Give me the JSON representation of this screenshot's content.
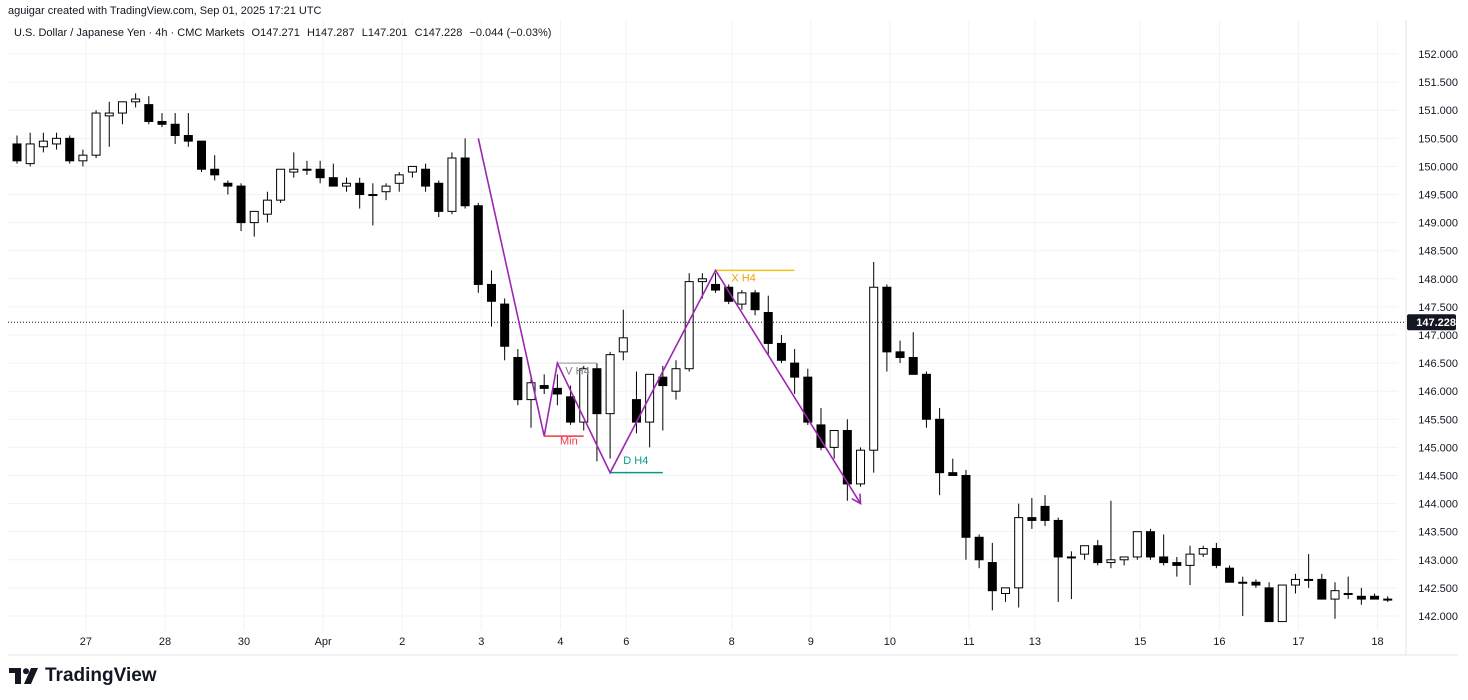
{
  "header": {
    "credit": "aguigar created with TradingView.com, Sep 01, 2025 17:21 UTC"
  },
  "legend": {
    "symbol": "U.S. Dollar / Japanese Yen · 4h · CMC Markets",
    "open": "O147.271",
    "high": "H147.287",
    "low": "L147.201",
    "close": "C147.228",
    "change": "−0.044 (−0.03%)"
  },
  "brand": {
    "name": "TradingView",
    "icon": "tradingview-logo-icon"
  },
  "colors": {
    "bull": "#ffffff",
    "bear": "#000000",
    "wick": "#000000",
    "pattern": "#9c27b0",
    "min": "#f23645",
    "d": "#089981",
    "x": "#f0c419",
    "a": "#b2b5be",
    "grid": "#f0f3fa"
  },
  "chart_data": {
    "type": "candlestick",
    "timeframe": "4h",
    "y_axis": {
      "ticks": [
        "152.000",
        "151.500",
        "151.000",
        "150.500",
        "150.000",
        "149.500",
        "149.000",
        "148.500",
        "148.000",
        "147.500",
        "147.000",
        "146.500",
        "146.000",
        "145.500",
        "145.000",
        "144.500",
        "144.000",
        "143.500",
        "143.000",
        "142.500",
        "142.000"
      ],
      "ylim": [
        141.75,
        152.25
      ],
      "last_price": "147.228"
    },
    "x_axis": {
      "ticks": [
        {
          "label": "27",
          "idx": 5
        },
        {
          "label": "28",
          "idx": 11
        },
        {
          "label": "30",
          "idx": 17
        },
        {
          "label": "Apr",
          "idx": 23
        },
        {
          "label": "2",
          "idx": 29
        },
        {
          "label": "3",
          "idx": 35
        },
        {
          "label": "4",
          "idx": 41
        },
        {
          "label": "6",
          "idx": 46
        },
        {
          "label": "8",
          "idx": 54
        },
        {
          "label": "9",
          "idx": 60
        },
        {
          "label": "10",
          "idx": 66
        },
        {
          "label": "11",
          "idx": 72
        },
        {
          "label": "13",
          "idx": 77
        },
        {
          "label": "15",
          "idx": 85
        },
        {
          "label": "16",
          "idx": 91
        },
        {
          "label": "17",
          "idx": 97
        },
        {
          "label": "18",
          "idx": 103
        }
      ]
    },
    "candles": [
      {
        "o": 150.4,
        "h": 150.55,
        "l": 150.05,
        "c": 150.1
      },
      {
        "o": 150.05,
        "h": 150.6,
        "l": 150.0,
        "c": 150.4
      },
      {
        "o": 150.35,
        "h": 150.6,
        "l": 150.25,
        "c": 150.45
      },
      {
        "o": 150.4,
        "h": 150.6,
        "l": 150.3,
        "c": 150.5
      },
      {
        "o": 150.5,
        "h": 150.55,
        "l": 150.05,
        "c": 150.1
      },
      {
        "o": 150.1,
        "h": 150.3,
        "l": 150.0,
        "c": 150.2
      },
      {
        "o": 150.2,
        "h": 151.0,
        "l": 150.15,
        "c": 150.95
      },
      {
        "o": 150.9,
        "h": 151.15,
        "l": 150.35,
        "c": 150.95
      },
      {
        "o": 150.95,
        "h": 151.15,
        "l": 150.75,
        "c": 151.15
      },
      {
        "o": 151.15,
        "h": 151.3,
        "l": 151.05,
        "c": 151.2
      },
      {
        "o": 151.1,
        "h": 151.25,
        "l": 150.75,
        "c": 150.8
      },
      {
        "o": 150.8,
        "h": 150.95,
        "l": 150.7,
        "c": 150.75
      },
      {
        "o": 150.75,
        "h": 150.95,
        "l": 150.4,
        "c": 150.55
      },
      {
        "o": 150.55,
        "h": 150.95,
        "l": 150.35,
        "c": 150.45
      },
      {
        "o": 150.45,
        "h": 150.45,
        "l": 149.9,
        "c": 149.95
      },
      {
        "o": 149.95,
        "h": 150.2,
        "l": 149.75,
        "c": 149.85
      },
      {
        "o": 149.7,
        "h": 149.75,
        "l": 149.5,
        "c": 149.65
      },
      {
        "o": 149.65,
        "h": 149.7,
        "l": 148.85,
        "c": 149.0
      },
      {
        "o": 149.0,
        "h": 149.2,
        "l": 148.75,
        "c": 149.2
      },
      {
        "o": 149.15,
        "h": 149.55,
        "l": 149.0,
        "c": 149.4
      },
      {
        "o": 149.4,
        "h": 149.95,
        "l": 149.35,
        "c": 149.95
      },
      {
        "o": 149.9,
        "h": 150.25,
        "l": 149.8,
        "c": 149.95
      },
      {
        "o": 149.95,
        "h": 150.1,
        "l": 149.85,
        "c": 149.95
      },
      {
        "o": 149.95,
        "h": 150.1,
        "l": 149.7,
        "c": 149.8
      },
      {
        "o": 149.8,
        "h": 150.05,
        "l": 149.65,
        "c": 149.65
      },
      {
        "o": 149.65,
        "h": 149.8,
        "l": 149.55,
        "c": 149.7
      },
      {
        "o": 149.7,
        "h": 149.8,
        "l": 149.25,
        "c": 149.5
      },
      {
        "o": 149.5,
        "h": 149.7,
        "l": 148.95,
        "c": 149.5
      },
      {
        "o": 149.55,
        "h": 149.7,
        "l": 149.4,
        "c": 149.65
      },
      {
        "o": 149.7,
        "h": 149.9,
        "l": 149.55,
        "c": 149.85
      },
      {
        "o": 149.9,
        "h": 150.0,
        "l": 149.8,
        "c": 150.0
      },
      {
        "o": 149.95,
        "h": 150.05,
        "l": 149.55,
        "c": 149.65
      },
      {
        "o": 149.7,
        "h": 149.75,
        "l": 149.1,
        "c": 149.2
      },
      {
        "o": 149.2,
        "h": 150.25,
        "l": 149.15,
        "c": 150.15
      },
      {
        "o": 150.15,
        "h": 150.5,
        "l": 149.25,
        "c": 149.3
      },
      {
        "o": 149.3,
        "h": 149.35,
        "l": 147.75,
        "c": 147.9
      },
      {
        "o": 147.9,
        "h": 148.15,
        "l": 147.15,
        "c": 147.6
      },
      {
        "o": 147.55,
        "h": 147.65,
        "l": 146.55,
        "c": 146.8
      },
      {
        "o": 146.6,
        "h": 146.75,
        "l": 145.75,
        "c": 145.85
      },
      {
        "o": 145.85,
        "h": 146.3,
        "l": 145.35,
        "c": 146.15
      },
      {
        "o": 146.1,
        "h": 146.3,
        "l": 145.95,
        "c": 146.05
      },
      {
        "o": 146.05,
        "h": 146.3,
        "l": 145.75,
        "c": 145.95
      },
      {
        "o": 145.9,
        "h": 146.1,
        "l": 145.4,
        "c": 145.45
      },
      {
        "o": 145.45,
        "h": 146.45,
        "l": 145.3,
        "c": 146.4
      },
      {
        "o": 146.4,
        "h": 146.5,
        "l": 144.75,
        "c": 145.6
      },
      {
        "o": 145.6,
        "h": 146.7,
        "l": 144.8,
        "c": 146.65
      },
      {
        "o": 146.7,
        "h": 147.45,
        "l": 146.55,
        "c": 146.95
      },
      {
        "o": 145.85,
        "h": 146.35,
        "l": 145.25,
        "c": 145.45
      },
      {
        "o": 145.45,
        "h": 146.3,
        "l": 145.0,
        "c": 146.3
      },
      {
        "o": 146.25,
        "h": 146.45,
        "l": 145.3,
        "c": 146.1
      },
      {
        "o": 146.0,
        "h": 146.55,
        "l": 145.85,
        "c": 146.4
      },
      {
        "o": 146.4,
        "h": 148.1,
        "l": 146.35,
        "c": 147.95
      },
      {
        "o": 147.95,
        "h": 148.1,
        "l": 147.65,
        "c": 148.0
      },
      {
        "o": 147.9,
        "h": 148.1,
        "l": 147.75,
        "c": 147.8
      },
      {
        "o": 147.85,
        "h": 147.9,
        "l": 147.55,
        "c": 147.6
      },
      {
        "o": 147.55,
        "h": 147.8,
        "l": 147.45,
        "c": 147.75
      },
      {
        "o": 147.75,
        "h": 147.8,
        "l": 147.35,
        "c": 147.45
      },
      {
        "o": 147.4,
        "h": 147.7,
        "l": 146.65,
        "c": 146.85
      },
      {
        "o": 146.85,
        "h": 147.0,
        "l": 146.5,
        "c": 146.55
      },
      {
        "o": 146.5,
        "h": 146.75,
        "l": 145.95,
        "c": 146.25
      },
      {
        "o": 146.25,
        "h": 146.4,
        "l": 145.4,
        "c": 145.45
      },
      {
        "o": 145.4,
        "h": 145.7,
        "l": 144.95,
        "c": 145.0
      },
      {
        "o": 145.0,
        "h": 145.3,
        "l": 144.8,
        "c": 145.3
      },
      {
        "o": 145.3,
        "h": 145.5,
        "l": 144.05,
        "c": 144.35
      },
      {
        "o": 144.35,
        "h": 145.0,
        "l": 144.3,
        "c": 144.95
      },
      {
        "o": 144.95,
        "h": 148.3,
        "l": 144.55,
        "c": 147.85
      },
      {
        "o": 147.85,
        "h": 147.9,
        "l": 146.35,
        "c": 146.7
      },
      {
        "o": 146.7,
        "h": 146.9,
        "l": 146.5,
        "c": 146.6
      },
      {
        "o": 146.6,
        "h": 147.05,
        "l": 146.3,
        "c": 146.3
      },
      {
        "o": 146.3,
        "h": 146.35,
        "l": 145.35,
        "c": 145.5
      },
      {
        "o": 145.5,
        "h": 145.7,
        "l": 144.15,
        "c": 144.55
      },
      {
        "o": 144.55,
        "h": 144.8,
        "l": 144.5,
        "c": 144.5
      },
      {
        "o": 144.5,
        "h": 144.6,
        "l": 143.0,
        "c": 143.4
      },
      {
        "o": 143.4,
        "h": 143.45,
        "l": 142.85,
        "c": 143.0
      },
      {
        "o": 142.95,
        "h": 143.3,
        "l": 142.1,
        "c": 142.45
      },
      {
        "o": 142.4,
        "h": 142.5,
        "l": 142.25,
        "c": 142.5
      },
      {
        "o": 142.5,
        "h": 144.0,
        "l": 142.15,
        "c": 143.75
      },
      {
        "o": 143.75,
        "h": 144.1,
        "l": 143.55,
        "c": 143.7
      },
      {
        "o": 143.95,
        "h": 144.15,
        "l": 143.6,
        "c": 143.7
      },
      {
        "o": 143.7,
        "h": 143.75,
        "l": 142.25,
        "c": 143.05
      },
      {
        "o": 143.05,
        "h": 143.15,
        "l": 142.3,
        "c": 143.05
      },
      {
        "o": 143.1,
        "h": 143.25,
        "l": 143.0,
        "c": 143.25
      },
      {
        "o": 143.25,
        "h": 143.35,
        "l": 142.9,
        "c": 142.95
      },
      {
        "o": 142.95,
        "h": 144.05,
        "l": 142.85,
        "c": 143.0
      },
      {
        "o": 143.0,
        "h": 143.05,
        "l": 142.9,
        "c": 143.05
      },
      {
        "o": 143.05,
        "h": 143.5,
        "l": 143.0,
        "c": 143.5
      },
      {
        "o": 143.5,
        "h": 143.55,
        "l": 143.0,
        "c": 143.05
      },
      {
        "o": 143.05,
        "h": 143.45,
        "l": 142.9,
        "c": 142.95
      },
      {
        "o": 142.95,
        "h": 143.05,
        "l": 142.7,
        "c": 142.9
      },
      {
        "o": 142.9,
        "h": 143.25,
        "l": 142.55,
        "c": 143.1
      },
      {
        "o": 143.1,
        "h": 143.25,
        "l": 143.05,
        "c": 143.2
      },
      {
        "o": 143.2,
        "h": 143.3,
        "l": 142.85,
        "c": 142.9
      },
      {
        "o": 142.85,
        "h": 142.9,
        "l": 142.6,
        "c": 142.6
      },
      {
        "o": 142.6,
        "h": 142.7,
        "l": 142.0,
        "c": 142.6
      },
      {
        "o": 142.6,
        "h": 142.65,
        "l": 142.5,
        "c": 142.55
      },
      {
        "o": 142.5,
        "h": 142.6,
        "l": 141.9,
        "c": 141.9
      },
      {
        "o": 141.9,
        "h": 142.55,
        "l": 141.9,
        "c": 142.55
      },
      {
        "o": 142.55,
        "h": 142.75,
        "l": 142.4,
        "c": 142.65
      },
      {
        "o": 142.65,
        "h": 143.1,
        "l": 142.5,
        "c": 142.65
      },
      {
        "o": 142.65,
        "h": 142.75,
        "l": 142.3,
        "c": 142.3
      },
      {
        "o": 142.3,
        "h": 142.6,
        "l": 141.95,
        "c": 142.45
      },
      {
        "o": 142.4,
        "h": 142.7,
        "l": 142.3,
        "c": 142.4
      },
      {
        "o": 142.35,
        "h": 142.5,
        "l": 142.2,
        "c": 142.3
      },
      {
        "o": 142.35,
        "h": 142.4,
        "l": 142.3,
        "c": 142.3
      },
      {
        "o": 142.3,
        "h": 142.35,
        "l": 142.25,
        "c": 142.3
      }
    ],
    "pattern": {
      "points": [
        {
          "idx": 35,
          "price": 150.5
        },
        {
          "idx": 40,
          "price": 145.2
        },
        {
          "idx": 41,
          "price": 146.5
        },
        {
          "idx": 45,
          "price": 144.55
        },
        {
          "idx": 53,
          "price": 148.15
        },
        {
          "idx": 64,
          "price": 144.0
        }
      ],
      "labels": [
        {
          "text": "Min",
          "idx": 41.2,
          "price": 145.05
        },
        {
          "text": "V H4",
          "idx": 41.6,
          "price": 146.3
        },
        {
          "text": "D H4",
          "idx": 46.0,
          "price": 144.7
        },
        {
          "text": "X H4",
          "idx": 54.2,
          "price": 147.95
        }
      ],
      "levels": [
        {
          "name": "min",
          "price": 145.2,
          "from": 40,
          "to": 43
        },
        {
          "name": "a",
          "price": 146.5,
          "from": 41,
          "to": 44
        },
        {
          "name": "d",
          "price": 144.55,
          "from": 45,
          "to": 49
        },
        {
          "name": "x",
          "price": 148.15,
          "from": 53,
          "to": 59
        }
      ]
    }
  }
}
